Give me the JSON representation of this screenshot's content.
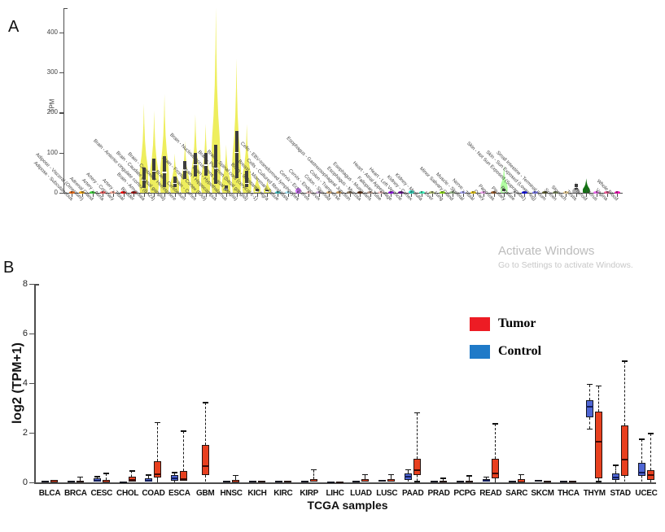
{
  "panel_labels": {
    "a": "A",
    "b": "B"
  },
  "watermark": {
    "line1": "Activate Windows",
    "line2": "Go to Settings to activate Windows."
  },
  "chart_data": [
    {
      "id": "gtex_tissue_violin",
      "type": "violin",
      "panel": "A",
      "ylabel": "TPM",
      "yticks": [
        0,
        100,
        200,
        300,
        400
      ],
      "ylim": [
        0,
        460
      ],
      "grid": false,
      "note": "Expression (TPM) across GTEx tissues; violin with dark inner box and white median; brain tissues elevated (yellow).",
      "tissues": [
        {
          "name": "Adipose - Subcutaneous",
          "color": "#FF6600",
          "stats": [
            0.5,
            1,
            2,
            5
          ]
        },
        {
          "name": "Adipose - Visceral (Omentum)",
          "color": "#FFAA00",
          "stats": [
            0.5,
            1,
            2,
            5
          ]
        },
        {
          "name": "Adrenal Gland",
          "color": "#33DD33",
          "stats": [
            0.5,
            1,
            2,
            6
          ]
        },
        {
          "name": "Artery - Aorta",
          "color": "#FF5555",
          "stats": [
            0.5,
            1,
            2,
            4
          ]
        },
        {
          "name": "Artery - Coronary",
          "color": "#FFAA99",
          "stats": [
            0.5,
            1,
            2,
            4
          ]
        },
        {
          "name": "Artery - Tibial",
          "color": "#FF0000",
          "stats": [
            0.5,
            1,
            2,
            4
          ]
        },
        {
          "name": "Bladder",
          "color": "#AA0000",
          "stats": [
            0.5,
            1,
            2,
            5
          ]
        },
        {
          "name": "Brain - Amygdala",
          "color": "#EDED4F",
          "stats": [
            12,
            33,
            62,
            222
          ]
        },
        {
          "name": "Brain - Anterior cingulate cortex (BA24)",
          "color": "#EDED4F",
          "stats": [
            32,
            55,
            86,
            205
          ]
        },
        {
          "name": "Brain - Caudate (basal ganglia)",
          "color": "#EDED4F",
          "stats": [
            15,
            52,
            92,
            246
          ]
        },
        {
          "name": "Brain - Cerebellar Hemisphere",
          "color": "#EDED4F",
          "stats": [
            14,
            24,
            40,
            98
          ]
        },
        {
          "name": "Brain - Cerebellum",
          "color": "#EDED4F",
          "stats": [
            34,
            58,
            79,
            130
          ]
        },
        {
          "name": "Brain - Cortex",
          "color": "#EDED4F",
          "stats": [
            40,
            72,
            99,
            196
          ]
        },
        {
          "name": "Brain - Frontal Cortex (BA9)",
          "color": "#EDED4F",
          "stats": [
            42,
            70,
            99,
            172
          ]
        },
        {
          "name": "Brain - Hippocampus",
          "color": "#EDED4F",
          "stats": [
            22,
            62,
            119,
            462
          ]
        },
        {
          "name": "Brain - Hypothalamus",
          "color": "#EDED4F",
          "stats": [
            6,
            11,
            18,
            120
          ]
        },
        {
          "name": "Brain - Nucleus accumbens (basal ganglia)",
          "color": "#EDED4F",
          "stats": [
            36,
            101,
            155,
            335
          ]
        },
        {
          "name": "Brain - Putamen (basal ganglia)",
          "color": "#EDED4F",
          "stats": [
            14,
            25,
            55,
            172
          ]
        },
        {
          "name": "Brain - Spinal cord (cervical c-1)",
          "color": "#EDED4F",
          "stats": [
            2,
            5,
            10,
            48
          ]
        },
        {
          "name": "Brain - Substantia nigra",
          "color": "#EDED4F",
          "stats": [
            2,
            5,
            9,
            32
          ]
        },
        {
          "name": "Breast - Mammary Tissue",
          "color": "#33CCCC",
          "stats": [
            0.5,
            1,
            2,
            5
          ]
        },
        {
          "name": "Cells - Cultured fibroblasts",
          "color": "#AAEEFF",
          "stats": [
            0.5,
            1,
            2,
            4
          ]
        },
        {
          "name": "Cells - EBV-transformed lymphocytes",
          "color": "#CC66FF",
          "stats": [
            1,
            2,
            4,
            14
          ]
        },
        {
          "name": "Cervix - Ectocervix",
          "color": "#FFCCCC",
          "stats": [
            0.5,
            1,
            2,
            4
          ]
        },
        {
          "name": "Cervix - Endocervix",
          "color": "#CCAADD",
          "stats": [
            0.5,
            1,
            2,
            4
          ]
        },
        {
          "name": "Colon - Sigmoid",
          "color": "#EEBB77",
          "stats": [
            0.5,
            1,
            2,
            4
          ]
        },
        {
          "name": "Colon - Transverse",
          "color": "#CC9955",
          "stats": [
            0.5,
            1,
            2,
            5
          ]
        },
        {
          "name": "Esophagus - Gastroesophageal Junction",
          "color": "#8B7355",
          "stats": [
            0.5,
            1,
            2,
            4
          ]
        },
        {
          "name": "Esophagus - Mucosa",
          "color": "#552200",
          "stats": [
            0.5,
            1,
            2,
            5
          ]
        },
        {
          "name": "Esophagus - Muscularis",
          "color": "#BB9988",
          "stats": [
            0.5,
            1,
            2,
            4
          ]
        },
        {
          "name": "Fallopian Tube",
          "color": "#FFCCCC",
          "stats": [
            0.5,
            1,
            2,
            4
          ]
        },
        {
          "name": "Heart - Atrial Appendage",
          "color": "#9900FF",
          "stats": [
            0.5,
            1,
            2,
            6
          ]
        },
        {
          "name": "Heart - Left Ventricle",
          "color": "#660099",
          "stats": [
            0.5,
            1,
            2,
            4
          ]
        },
        {
          "name": "Kidney - Cortex",
          "color": "#22FFDD",
          "stats": [
            0.5,
            1,
            2,
            8
          ]
        },
        {
          "name": "Kidney - Medulla",
          "color": "#33FFC2",
          "stats": [
            0.5,
            1,
            2,
            4
          ]
        },
        {
          "name": "Liver",
          "color": "#AABB66",
          "stats": [
            0.5,
            1,
            2,
            4
          ]
        },
        {
          "name": "Lung",
          "color": "#99FF00",
          "stats": [
            0.5,
            1,
            2,
            6
          ]
        },
        {
          "name": "Minor Salivary Gland",
          "color": "#99BB88",
          "stats": [
            0.5,
            1,
            2,
            6
          ]
        },
        {
          "name": "Muscle - Skeletal",
          "color": "#AAAAFF",
          "stats": [
            0.5,
            1,
            2,
            4
          ]
        },
        {
          "name": "Nerve - Tibial",
          "color": "#FFD700",
          "stats": [
            0.5,
            1,
            2,
            5
          ]
        },
        {
          "name": "Ovary",
          "color": "#FFAAFF",
          "stats": [
            0.5,
            1,
            2,
            5
          ]
        },
        {
          "name": "Pancreas",
          "color": "#995522",
          "stats": [
            0.5,
            1,
            2,
            4
          ]
        },
        {
          "name": "Pituitary",
          "color": "#AAFF99",
          "stats": [
            2,
            5,
            10,
            70
          ]
        },
        {
          "name": "Prostate",
          "color": "#DDDDDD",
          "stats": [
            0.5,
            1,
            2,
            6
          ]
        },
        {
          "name": "Skin - Not Sun Exposed (Suprapubic)",
          "color": "#0000FF",
          "stats": [
            0.5,
            1,
            2,
            5
          ]
        },
        {
          "name": "Skin - Sun Exposed (Lower leg)",
          "color": "#7777FF",
          "stats": [
            0.5,
            1,
            2,
            5
          ]
        },
        {
          "name": "Small Intestine - Terminal Ileum",
          "color": "#555522",
          "stats": [
            0.5,
            1,
            2,
            5
          ]
        },
        {
          "name": "Spleen",
          "color": "#778855",
          "stats": [
            0.5,
            1,
            2,
            6
          ]
        },
        {
          "name": "Stomach",
          "color": "#FFDD99",
          "stats": [
            0.5,
            1,
            2,
            4
          ]
        },
        {
          "name": "Testis",
          "color": "#AAAAAA",
          "stats": [
            8,
            14,
            22,
            28
          ]
        },
        {
          "name": "Thyroid",
          "color": "#006600",
          "stats": [
            1,
            3,
            6,
            36
          ]
        },
        {
          "name": "Uterus",
          "color": "#FF66FF",
          "stats": [
            0.5,
            1,
            2,
            5
          ]
        },
        {
          "name": "Vagina",
          "color": "#FF5599",
          "stats": [
            0.5,
            1,
            2,
            5
          ]
        },
        {
          "name": "Whole Blood",
          "color": "#FF00BB",
          "stats": [
            0.5,
            1,
            2,
            5
          ]
        }
      ]
    },
    {
      "id": "tcga_tumor_control_box",
      "type": "box",
      "panel": "B",
      "ylabel": "log2 (TPM+1)",
      "xlabel": "TCGA samples",
      "yticks": [
        0,
        2,
        4,
        6,
        8
      ],
      "ylim": [
        0,
        8
      ],
      "grid": false,
      "legend": [
        {
          "label": "Tumor",
          "color": "#ED1C24"
        },
        {
          "label": "Control",
          "color": "#1F7AC8"
        }
      ],
      "categories": [
        "BLCA",
        "BRCA",
        "CESC",
        "CHOL",
        "COAD",
        "ESCA",
        "GBM",
        "HNSC",
        "KICH",
        "KIRC",
        "KIRP",
        "LIHC",
        "LUAD",
        "LUSC",
        "PAAD",
        "PRAD",
        "PCPG",
        "READ",
        "SARC",
        "SKCM",
        "THCA",
        "THYM",
        "STAD",
        "UCEC"
      ],
      "series": [
        {
          "name": "Control",
          "fill": "#4F66D4",
          "median_color": "#101C5A",
          "boxes": [
            [
              0,
              0.01,
              0.04,
              0.08,
              0.13
            ],
            [
              0,
              0.01,
              0.03,
              0.07,
              0.11
            ],
            [
              0,
              0.03,
              0.08,
              0.15,
              0.22
            ],
            [
              0,
              0.01,
              0.02,
              0.04,
              0.06
            ],
            [
              0,
              0.03,
              0.08,
              0.16,
              0.28
            ],
            [
              0,
              0.08,
              0.18,
              0.28,
              0.38
            ],
            null,
            [
              0,
              0.01,
              0.03,
              0.06,
              0.1
            ],
            [
              0,
              0.01,
              0.03,
              0.07,
              0.1
            ],
            [
              0,
              0.01,
              0.02,
              0.05,
              0.08
            ],
            [
              0,
              0.01,
              0.03,
              0.07,
              0.1
            ],
            [
              0,
              0.0,
              0.01,
              0.03,
              0.05
            ],
            [
              0,
              0.01,
              0.03,
              0.08,
              0.12
            ],
            [
              0,
              0.02,
              0.05,
              0.1,
              0.15
            ],
            [
              0.02,
              0.1,
              0.22,
              0.35,
              0.5
            ],
            [
              0,
              0.01,
              0.03,
              0.08,
              0.12
            ],
            [
              0,
              0.01,
              0.02,
              0.06,
              0.09
            ],
            [
              0,
              0.02,
              0.06,
              0.12,
              0.2
            ],
            [
              0,
              0.01,
              0.02,
              0.05,
              0.08
            ],
            [
              0,
              0.02,
              0.05,
              0.1,
              0.14
            ],
            [
              0,
              0.01,
              0.03,
              0.08,
              0.12
            ],
            [
              2.17,
              2.63,
              3.06,
              3.32,
              3.95
            ],
            [
              0,
              0.1,
              0.2,
              0.36,
              0.69
            ],
            [
              0.02,
              0.26,
              0.4,
              0.79,
              1.74
            ]
          ]
        },
        {
          "name": "Tumor",
          "fill": "#E8401F",
          "median_color": "#3F0A05",
          "boxes": [
            [
              0,
              0.01,
              0.04,
              0.09,
              0.15
            ],
            [
              0,
              0.01,
              0.03,
              0.08,
              0.2
            ],
            [
              0,
              0.01,
              0.04,
              0.1,
              0.35
            ],
            [
              0,
              0.03,
              0.09,
              0.22,
              0.45
            ],
            [
              0,
              0.2,
              0.32,
              0.85,
              2.4
            ],
            [
              0,
              0.05,
              0.12,
              0.45,
              2.05
            ],
            [
              0.02,
              0.3,
              0.65,
              1.5,
              3.2
            ],
            [
              0,
              0.01,
              0.04,
              0.1,
              0.27
            ],
            [
              0,
              0.01,
              0.02,
              0.06,
              0.1
            ],
            [
              0,
              0.01,
              0.03,
              0.08,
              0.12
            ],
            [
              0,
              0.02,
              0.05,
              0.12,
              0.5
            ],
            [
              0,
              0.01,
              0.02,
              0.04,
              0.08
            ],
            [
              0,
              0.02,
              0.05,
              0.12,
              0.3
            ],
            [
              0,
              0.02,
              0.05,
              0.12,
              0.3
            ],
            [
              0.05,
              0.3,
              0.5,
              0.95,
              2.8
            ],
            [
              0,
              0.01,
              0.03,
              0.08,
              0.15
            ],
            [
              0,
              0.01,
              0.03,
              0.08,
              0.25
            ],
            [
              0,
              0.15,
              0.35,
              0.95,
              2.35
            ],
            [
              0,
              0.01,
              0.04,
              0.12,
              0.3
            ],
            [
              0,
              0.01,
              0.02,
              0.06,
              0.09
            ],
            [
              0,
              0.01,
              0.02,
              0.05,
              0.08
            ],
            [
              0.05,
              0.16,
              1.64,
              2.86,
              3.88
            ],
            [
              0.02,
              0.26,
              0.92,
              2.3,
              4.87
            ],
            [
              0,
              0.1,
              0.28,
              0.49,
              1.97
            ]
          ]
        }
      ]
    }
  ]
}
